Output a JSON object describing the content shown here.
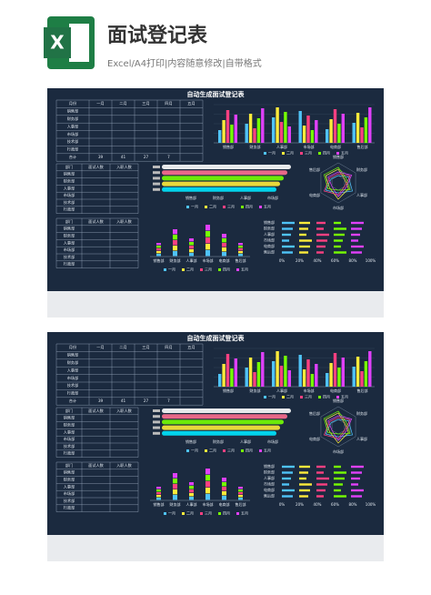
{
  "header": {
    "title": "面试登记表",
    "subtitle": "Excel/A4打印|内容随意修改|自带格式",
    "icon_letter": "X"
  },
  "sheet": {
    "title": "自动生成面试登记表",
    "monthly_table": {
      "columns": [
        "月份",
        "一月",
        "二月",
        "三月",
        "四月",
        "五月"
      ],
      "rows": [
        "销售部",
        "财务部",
        "人事部",
        "市场部",
        "技术部",
        "行政部"
      ],
      "total_label": "合计",
      "totals": [
        39,
        41,
        27,
        7
      ]
    },
    "interview_table": {
      "columns": [
        "部门",
        "面试人数",
        "入职人数"
      ],
      "rows": [
        "销售部",
        "财务部",
        "人事部",
        "市场部",
        "技术部",
        "行政部"
      ]
    },
    "hire_table": {
      "columns": [
        "部门",
        "面试人数",
        "入职人数"
      ],
      "rows": [
        "销售部",
        "财务部",
        "人事部",
        "市场部",
        "技术部",
        "行政部"
      ]
    },
    "chart_categories": [
      "销售部",
      "财务部",
      "人事部",
      "市场部",
      "电商部",
      "售后部"
    ],
    "legend": [
      "一月",
      "二月",
      "三月",
      "四月",
      "五月"
    ],
    "percent_ticks": [
      "0%",
      "20%",
      "40%",
      "60%",
      "80%",
      "100%"
    ]
  }
}
